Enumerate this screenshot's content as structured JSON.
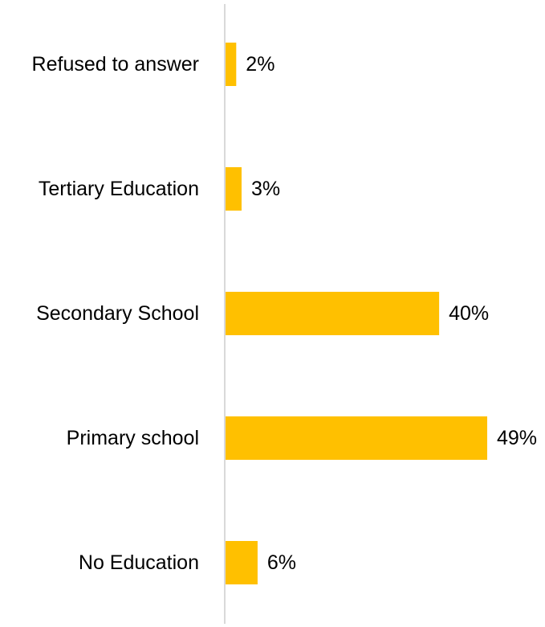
{
  "chart_data": {
    "type": "bar",
    "orientation": "horizontal",
    "categories": [
      "Refused to answer",
      "Tertiary Education",
      "Secondary School",
      "Primary school",
      "No Education"
    ],
    "values": [
      2,
      3,
      40,
      49,
      6
    ],
    "data_labels": [
      "2%",
      "3%",
      "40%",
      "49%",
      "6%"
    ],
    "unit": "%",
    "xlim": [
      0,
      49
    ],
    "grid": false,
    "legend": "none",
    "bar_color": "#FFC000",
    "axis_color": "#D9D9D9"
  }
}
